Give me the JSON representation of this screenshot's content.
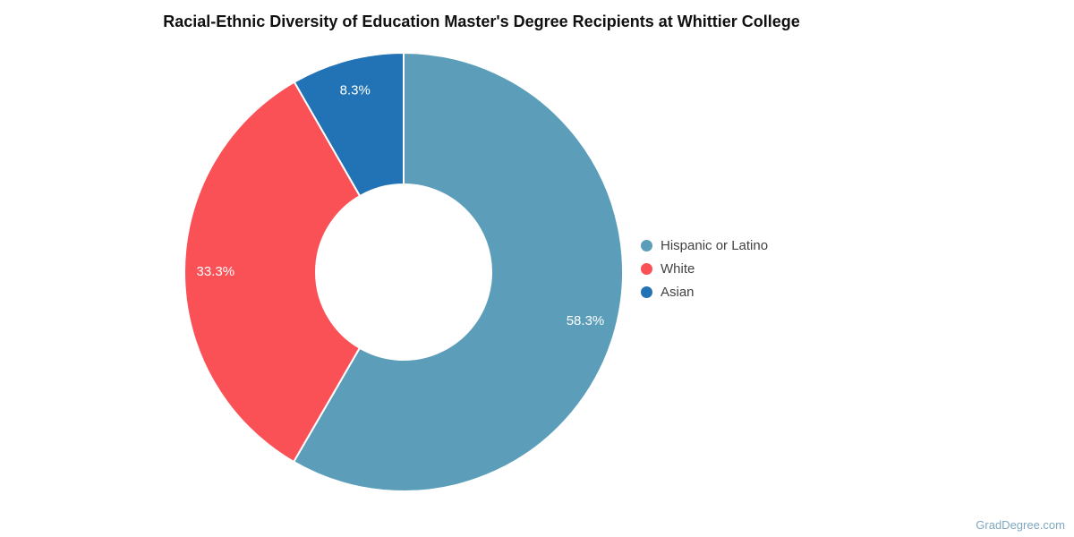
{
  "title": "Racial-Ethnic Diversity of Education Master's Degree Recipients at Whittier College",
  "watermark": "GradDegree.com",
  "chart_data": {
    "type": "pie",
    "subtype": "donut",
    "title": "Racial-Ethnic Diversity of Education Master's Degree Recipients at Whittier College",
    "start_angle_deg": 0,
    "direction": "clockwise",
    "inner_radius_ratio": 0.4,
    "label_radius_ratio": 0.858,
    "slice_border_color": "#FFFFFF",
    "label_color": "#FFFFFF",
    "legend_position": "right",
    "slices": [
      {
        "label": "Hispanic or Latino",
        "value": 58.3,
        "display": "58.3%",
        "color": "#5C9EBA"
      },
      {
        "label": "White",
        "value": 33.3,
        "display": "33.3%",
        "color": "#FA5157"
      },
      {
        "label": "Asian",
        "value": 8.3,
        "display": "8.3%",
        "color": "#2173B5"
      }
    ]
  }
}
